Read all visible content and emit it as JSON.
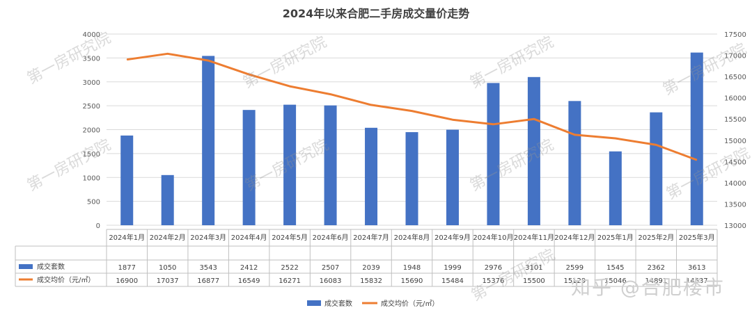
{
  "chart_data": {
    "type": "bar",
    "title": "2024年以来合肥二手房成交量价走势",
    "categories": [
      "2024年1月",
      "2024年2月",
      "2024年3月",
      "2024年4月",
      "2024年5月",
      "2024年6月",
      "2024年7月",
      "2024年8月",
      "2024年9月",
      "2024年10月",
      "2024年11月",
      "2024年12月",
      "2025年1月",
      "2025年2月",
      "2025年3月"
    ],
    "series": [
      {
        "name": "成交套数",
        "type": "bar",
        "axis": "left",
        "color": "#4472C4",
        "values": [
          1877,
          1050,
          3543,
          2412,
          2522,
          2507,
          2039,
          1948,
          1999,
          2976,
          3101,
          2599,
          1545,
          2362,
          3613
        ]
      },
      {
        "name": "成交均价（元/㎡）",
        "type": "line",
        "axis": "right",
        "color": "#ED7D31",
        "values": [
          16900,
          17037,
          16877,
          16549,
          16271,
          16083,
          15832,
          15690,
          15484,
          15376,
          15500,
          15129,
          15046,
          14891,
          14537
        ]
      }
    ],
    "y_left": {
      "min": 0,
      "max": 4000,
      "ticks": [
        0,
        500,
        1000,
        1500,
        2000,
        2500,
        3000,
        3500,
        4000
      ]
    },
    "y_right": {
      "min": 13000,
      "max": 17500,
      "ticks": [
        13000,
        13500,
        14000,
        14500,
        15000,
        15500,
        16000,
        16500,
        17000,
        17500
      ]
    },
    "grid": true,
    "data_table": true,
    "legend_position": "bottom"
  },
  "watermarks": [
    "第一房研究院",
    "第一房研究院",
    "第一房研究院",
    "第一房研究院",
    "第一房研究院",
    "第一房研究院",
    "第一房研究院",
    "第一房研究院",
    "第一房研究院"
  ],
  "brand": "知乎 @合肥楼市"
}
